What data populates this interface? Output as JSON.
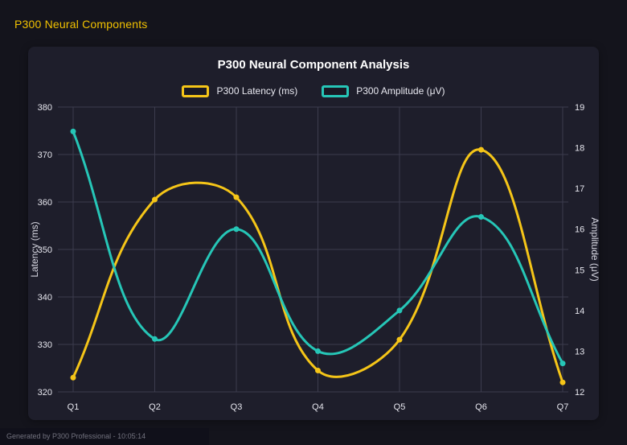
{
  "page": {
    "title": "P300 Neural Components",
    "footer": "Generated by P300 Professional - 10:05:14"
  },
  "chart_data": {
    "type": "line",
    "title": "P300 Neural Component Analysis",
    "categories": [
      "Q1",
      "Q2",
      "Q3",
      "Q4",
      "Q5",
      "Q6",
      "Q7"
    ],
    "series": [
      {
        "name": "P300 Latency (ms)",
        "axis": "left",
        "color": "#f5c518",
        "values": [
          323,
          360.5,
          361,
          324.5,
          331,
          371,
          322
        ]
      },
      {
        "name": "P300 Amplitude (μV)",
        "axis": "right",
        "color": "#26c6b7",
        "values": [
          18.4,
          13.3,
          16.0,
          13.0,
          14.0,
          16.3,
          12.7
        ]
      }
    ],
    "left_axis": {
      "label": "Latency (ms)",
      "min": 320,
      "max": 380,
      "ticks": [
        320,
        330,
        340,
        350,
        360,
        370,
        380
      ]
    },
    "right_axis": {
      "label": "Amplitude (μV)",
      "min": 12,
      "max": 19,
      "ticks": [
        12,
        13,
        14,
        15,
        16,
        17,
        18,
        19
      ]
    },
    "grid": true,
    "legend_position": "top",
    "line_tension": 0.4
  }
}
